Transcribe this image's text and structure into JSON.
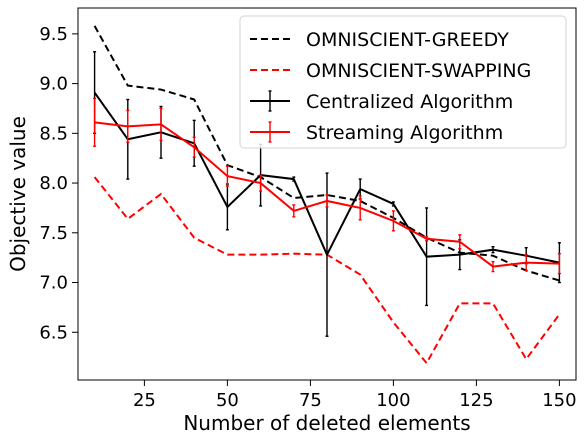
{
  "chart_data": {
    "type": "line",
    "title": "",
    "xlabel": "Number of deleted elements",
    "ylabel": "Objective value",
    "xlim": [
      5,
      155
    ],
    "ylim": [
      6.02,
      9.76
    ],
    "xticks": [
      25,
      50,
      75,
      100,
      125,
      150
    ],
    "xtick_labels": [
      "25",
      "50",
      "75",
      "100",
      "125",
      "150"
    ],
    "yticks": [
      6.5,
      7.0,
      7.5,
      8.0,
      8.5,
      9.0,
      9.5
    ],
    "ytick_labels": [
      "6.5",
      "7.0",
      "7.5",
      "8.0",
      "8.5",
      "9.0",
      "9.5"
    ],
    "grid": false,
    "legend_position": "top-right",
    "x": [
      10,
      20,
      30,
      40,
      50,
      60,
      70,
      80,
      90,
      100,
      110,
      120,
      130,
      140,
      150
    ],
    "series": [
      {
        "name": "OMNISCIENT-GREEDY",
        "color": "#000000",
        "style": "dashed",
        "values": [
          9.58,
          8.98,
          8.94,
          8.84,
          8.18,
          8.06,
          7.85,
          7.88,
          7.82,
          7.65,
          7.45,
          7.3,
          7.27,
          7.12,
          7.02
        ]
      },
      {
        "name": "OMNISCIENT-SWAPPING",
        "color": "#ff0000",
        "style": "dashed",
        "values": [
          8.06,
          7.64,
          7.89,
          7.45,
          7.28,
          7.28,
          7.29,
          7.28,
          7.08,
          6.6,
          6.19,
          6.79,
          6.79,
          6.23,
          6.68
        ]
      },
      {
        "name": "Centralized Algorithm",
        "color": "#000000",
        "style": "solid",
        "values": [
          8.91,
          8.44,
          8.51,
          8.4,
          7.76,
          8.08,
          8.04,
          7.28,
          7.94,
          7.79,
          7.26,
          7.28,
          7.33,
          7.27,
          7.2
        ],
        "errors": [
          0.41,
          0.4,
          0.26,
          0.23,
          0.23,
          0.31,
          0.02,
          0.82,
          0.1,
          0.02,
          0.49,
          0.15,
          0.03,
          0.08,
          0.2
        ]
      },
      {
        "name": "Streaming Algorithm",
        "color": "#ff0000",
        "style": "solid",
        "values": [
          8.61,
          8.57,
          8.59,
          8.36,
          8.07,
          8.0,
          7.72,
          7.82,
          7.75,
          7.62,
          7.44,
          7.41,
          7.16,
          7.2,
          7.19
        ],
        "errors": [
          0.24,
          0.16,
          0.16,
          0.1,
          0.1,
          0.08,
          0.06,
          0.06,
          0.12,
          0.1,
          0.02,
          0.07,
          0.05,
          0.08,
          0.1
        ]
      }
    ]
  }
}
